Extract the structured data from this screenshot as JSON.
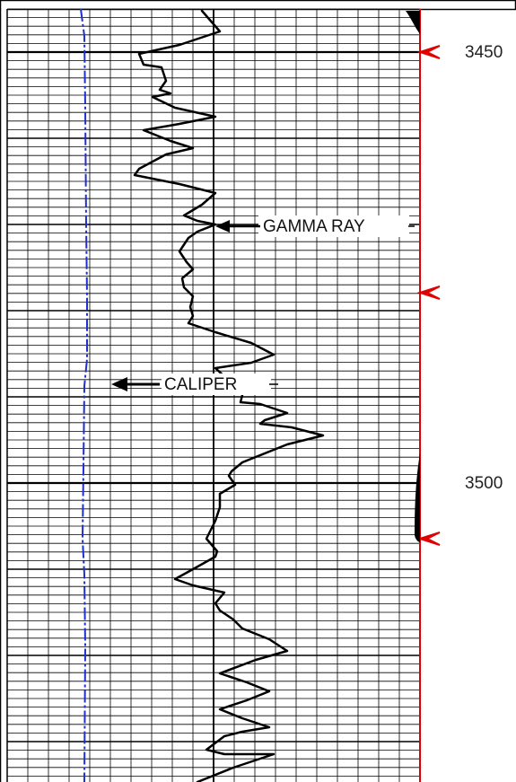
{
  "depth_labels": [
    "3450",
    "3500"
  ],
  "curve_labels": {
    "gamma_ray": "GAMMA RAY",
    "caliper": "CALIPER"
  }
}
